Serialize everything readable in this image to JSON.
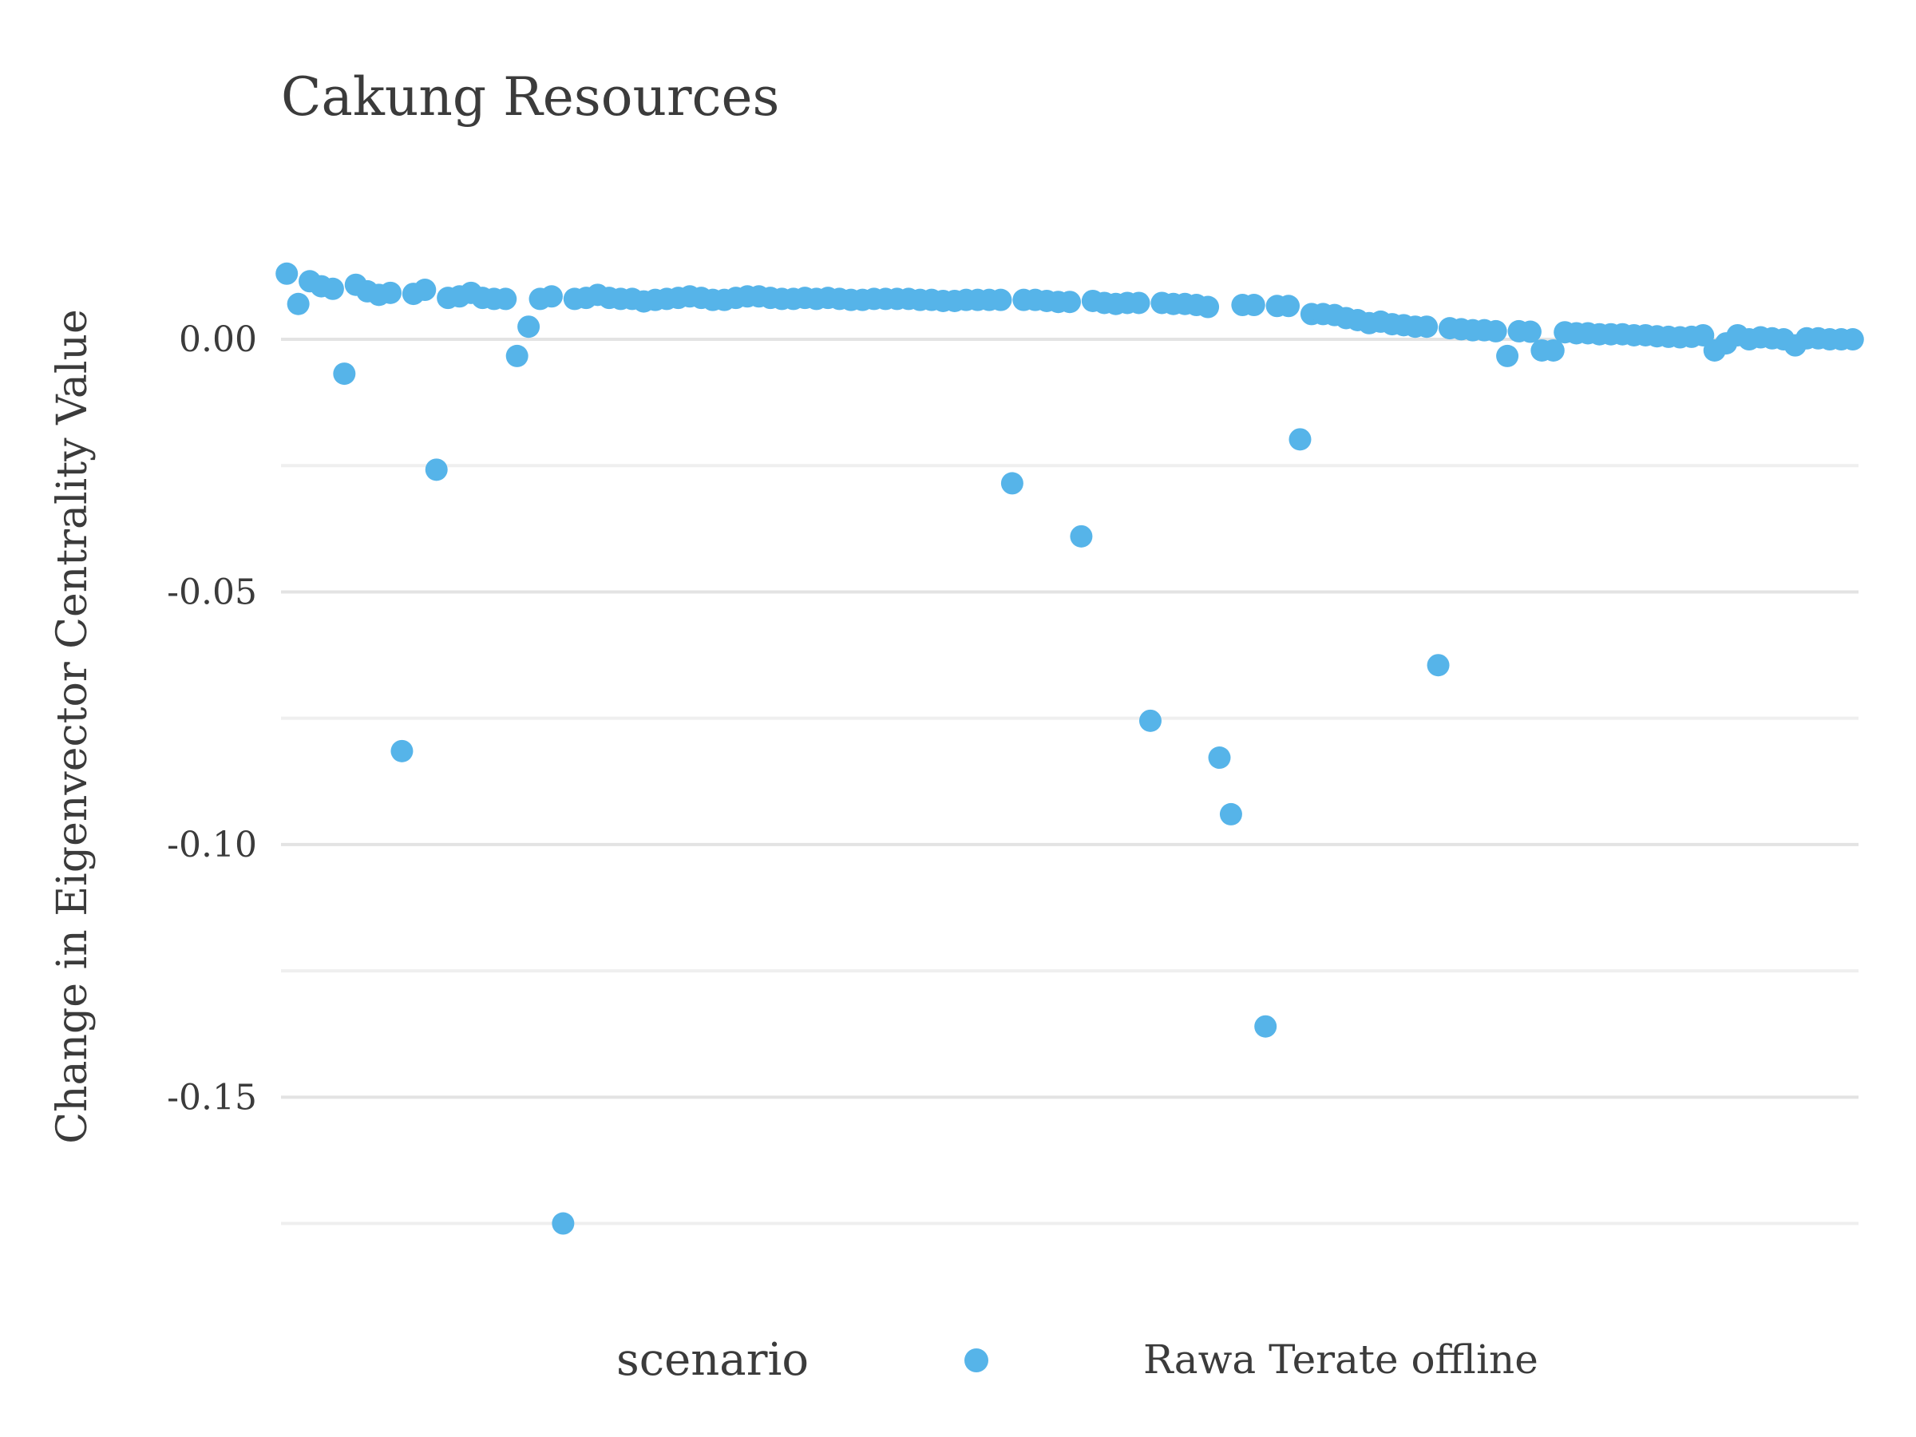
{
  "chart_data": {
    "type": "scatter",
    "title": "Cakung Resources",
    "xlabel": "",
    "ylabel": "Change in Eigenvector Centrality Value",
    "ylim": [
      -0.1825,
      0.0245
    ],
    "xlim": [
      0.5,
      137.5
    ],
    "y_ticks": [
      0.0,
      -0.05,
      -0.1,
      -0.15
    ],
    "y_tick_labels": [
      "0.00",
      "-0.05",
      "-0.10",
      "-0.15"
    ],
    "minor_gridlines": [
      -0.025,
      -0.075,
      -0.125,
      -0.175
    ],
    "grid": true,
    "x_axis_visible": false,
    "legend": {
      "title": "scenario",
      "position": "bottom",
      "entries": [
        {
          "label": "Rawa Terate offline",
          "color": "#56b4e9"
        }
      ]
    },
    "series": [
      {
        "name": "Rawa Terate offline",
        "color": "#56b4e9",
        "x": [
          1,
          2,
          3,
          4,
          5,
          6,
          7,
          8,
          9,
          10,
          11,
          12,
          13,
          14,
          15,
          16,
          17,
          18,
          19,
          20,
          21,
          22,
          23,
          24,
          25,
          26,
          27,
          28,
          29,
          30,
          31,
          32,
          33,
          34,
          35,
          36,
          37,
          38,
          39,
          40,
          41,
          42,
          43,
          44,
          45,
          46,
          47,
          48,
          49,
          50,
          51,
          52,
          53,
          54,
          55,
          56,
          57,
          58,
          59,
          60,
          61,
          62,
          63,
          64,
          65,
          66,
          67,
          68,
          69,
          70,
          71,
          72,
          73,
          74,
          75,
          76,
          77,
          78,
          79,
          80,
          81,
          82,
          83,
          84,
          85,
          86,
          87,
          88,
          89,
          90,
          91,
          92,
          93,
          94,
          95,
          96,
          97,
          98,
          99,
          100,
          101,
          102,
          103,
          104,
          105,
          106,
          107,
          108,
          109,
          110,
          111,
          112,
          113,
          114,
          115,
          116,
          117,
          118,
          119,
          120,
          121,
          122,
          123,
          124,
          125,
          126,
          127,
          128,
          129,
          130,
          131,
          132,
          133,
          134,
          135,
          136,
          137
        ],
        "y": [
          0.013,
          0.007,
          0.0115,
          0.0105,
          0.01,
          -0.0068,
          0.0108,
          0.0095,
          0.0088,
          0.0092,
          -0.0815,
          0.009,
          0.0098,
          -0.0258,
          0.0082,
          0.0085,
          0.0092,
          0.0082,
          0.008,
          0.008,
          -0.0033,
          0.0025,
          0.008,
          0.0085,
          -0.175,
          0.008,
          0.0082,
          0.0088,
          0.0082,
          0.008,
          0.008,
          0.0075,
          0.0078,
          0.008,
          0.0082,
          0.0085,
          0.0082,
          0.0078,
          0.0078,
          0.0082,
          0.0085,
          0.0085,
          0.0082,
          0.008,
          0.008,
          0.0082,
          0.008,
          0.0082,
          0.008,
          0.0078,
          0.0078,
          0.008,
          0.008,
          0.008,
          0.008,
          0.0078,
          0.0078,
          0.0076,
          0.0076,
          0.0078,
          0.0078,
          0.0078,
          0.0078,
          -0.0285,
          0.0078,
          0.0078,
          0.0076,
          0.0074,
          0.0074,
          -0.039,
          0.0076,
          0.0072,
          0.007,
          0.0072,
          0.0072,
          -0.0755,
          0.0072,
          0.007,
          0.007,
          0.0068,
          0.0064,
          -0.0828,
          -0.094,
          0.0068,
          0.0068,
          -0.136,
          0.0066,
          0.0066,
          -0.0198,
          0.005,
          0.005,
          0.0048,
          0.0042,
          0.0038,
          0.0032,
          0.0035,
          0.003,
          0.0028,
          0.0025,
          0.0025,
          -0.0645,
          0.0022,
          0.002,
          0.0018,
          0.0018,
          0.0016,
          -0.0033,
          0.0016,
          0.0015,
          -0.0022,
          -0.0022,
          0.0014,
          0.0012,
          0.0012,
          0.001,
          0.001,
          0.001,
          0.0008,
          0.0008,
          0.0006,
          0.0005,
          0.0004,
          0.0005,
          0.0008,
          -0.0022,
          -0.0008,
          0.0008,
          0.0,
          0.0004,
          0.0002,
          0.0,
          -0.0012,
          0.0002,
          0.0002,
          0.0,
          0.0,
          0.0
        ]
      }
    ]
  }
}
